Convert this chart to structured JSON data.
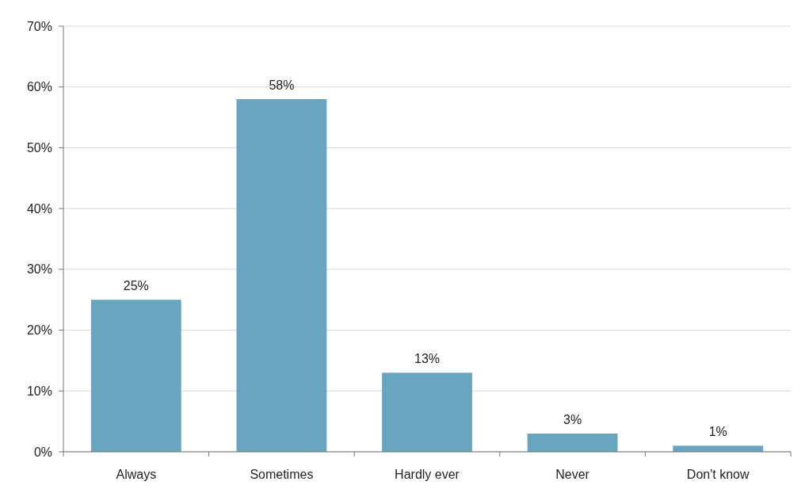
{
  "chart_data": {
    "type": "bar",
    "categories": [
      "Always",
      "Sometimes",
      "Hardly ever",
      "Never",
      "Don't know"
    ],
    "values": [
      25,
      58,
      13,
      3,
      1
    ],
    "color": "#6aa5c0",
    "ylim": [
      0,
      70
    ],
    "yticks": [
      {
        "value": 0,
        "label": "0%"
      },
      {
        "value": 10,
        "label": "10%"
      },
      {
        "value": 20,
        "label": "20%"
      },
      {
        "value": 30,
        "label": "30%"
      },
      {
        "value": 40,
        "label": "40%"
      },
      {
        "value": 50,
        "label": "50%"
      },
      {
        "value": 60,
        "label": "60%"
      },
      {
        "value": 70,
        "label": "70%"
      }
    ],
    "grid": "y",
    "value_labels": [
      "25%",
      "58%",
      "13%",
      "3%",
      "1%"
    ]
  }
}
